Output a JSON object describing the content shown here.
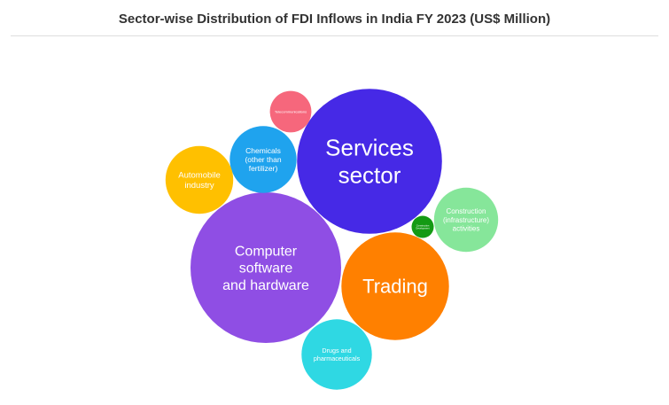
{
  "chart_data": {
    "type": "bubble",
    "title": "Sector-wise Distribution of FDI Inflows in India FY 2023 (US$ Million)",
    "series": [
      {
        "name": "Services sector",
        "lines": [
          "Services",
          "sector"
        ],
        "value": 8708,
        "color": "#4629e6"
      },
      {
        "name": "Computer software and hardware",
        "lines": [
          "Computer",
          "software",
          "and hardware"
        ],
        "value": 9394,
        "color": "#8f4ee4"
      },
      {
        "name": "Trading",
        "lines": [
          "Trading"
        ],
        "value": 4789,
        "color": "#ff8000"
      },
      {
        "name": "Chemicals (other than fertilizer)",
        "lines": [
          "Chemicals",
          "(other than",
          "fertilizer)"
        ],
        "value": 1850,
        "color": "#1fa3ee"
      },
      {
        "name": "Automobile industry",
        "lines": [
          "Automobile",
          "industry"
        ],
        "value": 1902,
        "color": "#ffc000"
      },
      {
        "name": "Construction (infrastructure) activities",
        "lines": [
          "Construction",
          "(infrastructure)",
          "activities"
        ],
        "value": 1703,
        "color": "#86e69a"
      },
      {
        "name": "Drugs and pharmaceuticals",
        "lines": [
          "Drugs and",
          "pharmaceuticals"
        ],
        "value": 2050,
        "color": "#2fd8e3"
      },
      {
        "name": "Telecommunications",
        "lines": [
          "Telecommunications"
        ],
        "value": 713,
        "color": "#f6677c"
      },
      {
        "name": "Construction Development",
        "lines": [
          "Construction",
          "Development"
        ],
        "value": 204,
        "color": "#149a14"
      }
    ]
  }
}
